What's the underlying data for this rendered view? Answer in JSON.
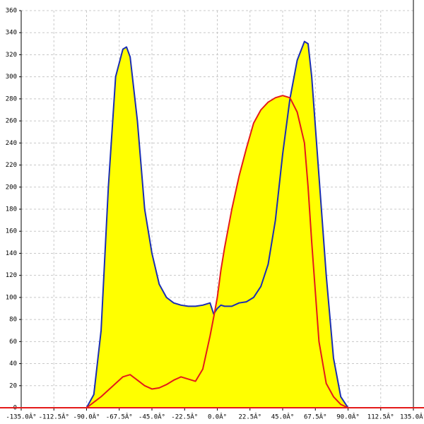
{
  "chart_data": {
    "type": "area",
    "x": [
      -90,
      -85,
      -80,
      -75,
      -70,
      -65,
      -62.5,
      -60,
      -55,
      -50,
      -45,
      -40,
      -35,
      -30,
      -25,
      -20,
      -15,
      -10,
      -5,
      -2.5,
      0,
      2.5,
      5,
      10,
      15,
      20,
      25,
      30,
      35,
      40,
      45,
      50,
      55,
      60,
      62.5,
      65,
      70,
      75,
      80,
      85,
      90
    ],
    "series": [
      {
        "color": "#1a2db4",
        "values": [
          0,
          12,
          70,
          200,
          300,
          325,
          327,
          318,
          260,
          180,
          140,
          112,
          100,
          95,
          93,
          92,
          92,
          93,
          95,
          85,
          90,
          93,
          92,
          92,
          95,
          96,
          100,
          110,
          130,
          170,
          230,
          280,
          315,
          332,
          330,
          300,
          210,
          120,
          45,
          10,
          0
        ]
      },
      {
        "color": "#e41a1a",
        "values": [
          0,
          5,
          10,
          16,
          22,
          28,
          29,
          30,
          25,
          20,
          17,
          18,
          21,
          25,
          28,
          26,
          24,
          35,
          65,
          82,
          100,
          125,
          145,
          180,
          210,
          235,
          258,
          270,
          277,
          281,
          283,
          281,
          268,
          240,
          200,
          150,
          60,
          22,
          10,
          3,
          0
        ]
      }
    ],
    "fill": "#ffff00",
    "xlim": [
      -135,
      135
    ],
    "xticks": [
      {
        "value": -135,
        "label": "-135.0Â°"
      },
      {
        "value": -112.5,
        "label": "-112.5Â°"
      },
      {
        "value": -90,
        "label": "-90.0Â°"
      },
      {
        "value": -67.5,
        "label": "-67.5Â°"
      },
      {
        "value": -45,
        "label": "-45.0Â°"
      },
      {
        "value": -22.5,
        "label": "-22.5Â°"
      },
      {
        "value": 0,
        "label": "0.0Â°"
      },
      {
        "value": 22.5,
        "label": "22.5Â°"
      },
      {
        "value": 45,
        "label": "45.0Â°"
      },
      {
        "value": 67.5,
        "label": "67.5Â°"
      },
      {
        "value": 90,
        "label": "90.0Â°"
      },
      {
        "value": 112.5,
        "label": "112.5Â°"
      },
      {
        "value": 135,
        "label": "135.0Â°"
      }
    ],
    "ylim": [
      0,
      360
    ],
    "yticks": [
      0,
      20,
      40,
      60,
      80,
      100,
      120,
      140,
      160,
      180,
      200,
      220,
      240,
      260,
      280,
      300,
      320,
      340,
      360
    ],
    "grid": true
  }
}
